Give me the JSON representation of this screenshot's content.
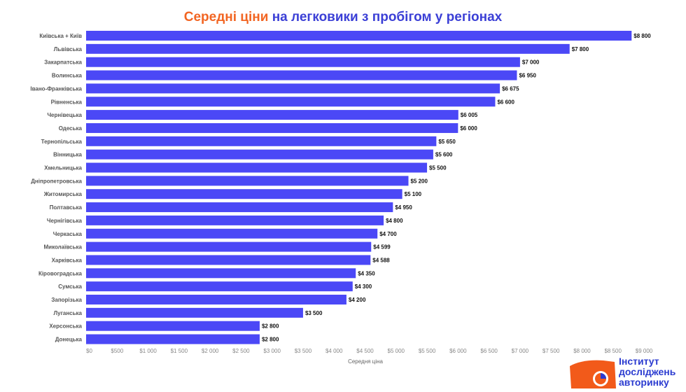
{
  "title": {
    "highlight": "Середні ціни",
    "rest": " на легковики з пробігом у регіонах"
  },
  "logo": {
    "lines": [
      "Інститут",
      "досліджень",
      "авторинку"
    ]
  },
  "colors": {
    "bar": "#4b48f6",
    "title_highlight": "#f26522",
    "title": "#3b3fd6",
    "logo_orange": "#f25a1a",
    "logo_blue": "#2b3bd0"
  },
  "chart_data": {
    "type": "bar",
    "orientation": "horizontal",
    "xlabel": "Середня ціна",
    "xlim": [
      0,
      9000
    ],
    "xticks": [
      "$0",
      "$500",
      "$1 000",
      "$1 500",
      "$2 000",
      "$2 500",
      "$3 000",
      "$3 500",
      "$4 000",
      "$4 500",
      "$5 000",
      "$5 500",
      "$6 000",
      "$6 500",
      "$7 000",
      "$7 500",
      "$8 000",
      "$8 500",
      "$9 000"
    ],
    "grid": false,
    "categories": [
      "Київська + Київ",
      "Львівська",
      "Закарпатська",
      "Волинська",
      "Івано-Франківська",
      "Рівненська",
      "Чернівецька",
      "Одеська",
      "Тернопільська",
      "Вінницька",
      "Хмельницька",
      "Дніпропетровська",
      "Житомирська",
      "Полтавська",
      "Чернігівська",
      "Черкаська",
      "Миколаївська",
      "Харківська",
      "Кіровоградська",
      "Сумська",
      "Запорізька",
      "Луганська",
      "Херсонська",
      "Донецька"
    ],
    "values": [
      8800,
      7800,
      7000,
      6950,
      6675,
      6600,
      6005,
      6000,
      5650,
      5600,
      5500,
      5200,
      5100,
      4950,
      4800,
      4700,
      4599,
      4588,
      4350,
      4300,
      4200,
      3500,
      2800,
      2800
    ],
    "data_labels": [
      "$8 800",
      "$7 800",
      "$7 000",
      "$6 950",
      "$6 675",
      "$6 600",
      "$6 005",
      "$6 000",
      "$5 650",
      "$5 600",
      "$5 500",
      "$5 200",
      "$5 100",
      "$4 950",
      "$4 800",
      "$4 700",
      "$4 599",
      "$4 588",
      "$4 350",
      "$4 300",
      "$4 200",
      "$3 500",
      "$2 800",
      "$2 800"
    ]
  }
}
